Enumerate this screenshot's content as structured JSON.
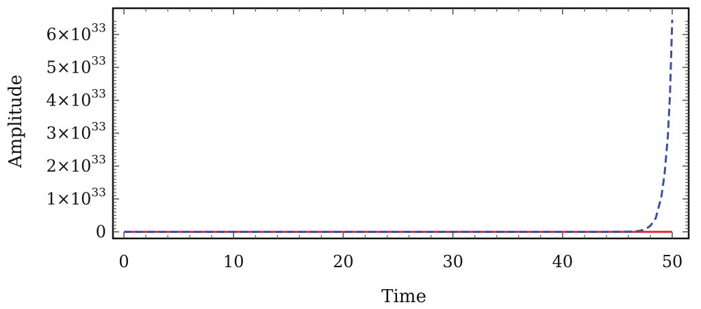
{
  "chart_data": {
    "type": "line",
    "title": "",
    "xlabel": "Time",
    "ylabel": "Amplitude",
    "xlim": [
      -1,
      51.5
    ],
    "ylim": [
      -0.2,
      6.8
    ],
    "y_unit_exponent": 33,
    "grid": false,
    "legend": "none",
    "x_ticks": [
      {
        "value": 0,
        "label": "0"
      },
      {
        "value": 10,
        "label": "10"
      },
      {
        "value": 20,
        "label": "20"
      },
      {
        "value": 30,
        "label": "30"
      },
      {
        "value": 40,
        "label": "40"
      },
      {
        "value": 50,
        "label": "50"
      }
    ],
    "y_ticks": [
      {
        "value": 0,
        "label": "0",
        "mantissa": "",
        "exponent": ""
      },
      {
        "value": 1,
        "label": "1×10^33",
        "mantissa": "1×10",
        "exponent": "33"
      },
      {
        "value": 2,
        "label": "2×10^33",
        "mantissa": "2×10",
        "exponent": "33"
      },
      {
        "value": 3,
        "label": "3×10^33",
        "mantissa": "3×10",
        "exponent": "33"
      },
      {
        "value": 4,
        "label": "4×10^33",
        "mantissa": "4×10",
        "exponent": "33"
      },
      {
        "value": 5,
        "label": "5×10^33",
        "mantissa": "5×10",
        "exponent": "33"
      },
      {
        "value": 6,
        "label": "6×10^33",
        "mantissa": "6×10",
        "exponent": "33"
      }
    ],
    "series": [
      {
        "color": "#e8303a",
        "style": "solid",
        "x": [
          0,
          10,
          20,
          30,
          40,
          45,
          47,
          48,
          49,
          50
        ],
        "y": [
          0,
          0,
          0,
          0,
          0,
          0,
          0,
          0,
          0,
          0
        ]
      },
      {
        "color": "#3a4fa8",
        "style": "dashed",
        "x": [
          0,
          10,
          20,
          30,
          40,
          45,
          46,
          46.5,
          47,
          47.5,
          48,
          48.5,
          49,
          49.3,
          49.6,
          49.8,
          50
        ],
        "y": [
          0,
          0,
          0,
          0,
          0,
          0.002,
          0.006,
          0.012,
          0.03,
          0.07,
          0.18,
          0.42,
          1.05,
          1.75,
          2.9,
          4.2,
          6.45
        ]
      }
    ]
  }
}
